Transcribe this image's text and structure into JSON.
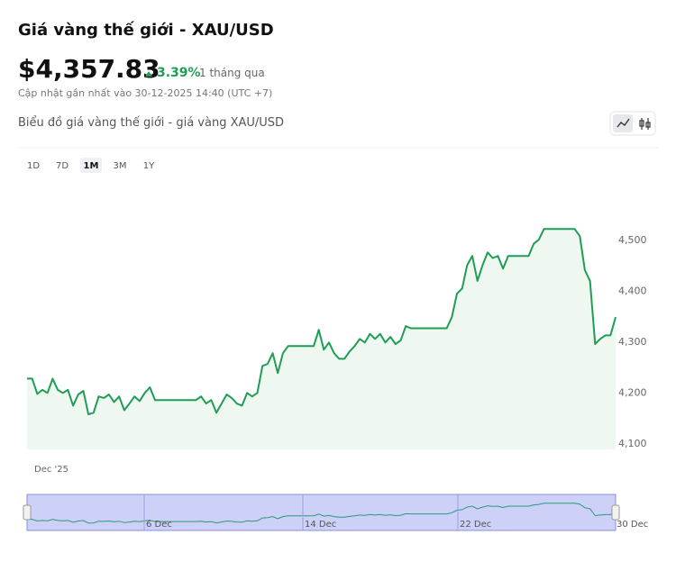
{
  "header": {
    "title": "Giá vàng thế giới - XAU/USD",
    "price": "$4,357.83",
    "change": "3.39%",
    "period": "1 tháng qua",
    "updated": "Cập nhật gần nhất vào 30-12-2025 14:40 (UTC +7)"
  },
  "chart_title": "Biểu đồ giá vàng thế giới - giá vàng XAU/USD",
  "range_buttons": [
    "1D",
    "7D",
    "1M",
    "3M",
    "1Y"
  ],
  "active_range": 2,
  "navigator": {
    "labels": [
      "6 Dec",
      "14 Dec",
      "22 Dec",
      "30 Dec"
    ]
  },
  "chart_data": {
    "type": "area",
    "x_label": "Dec '25",
    "color": "#1f9d55",
    "fill": "#eef8f1",
    "values": [
      4227,
      4227,
      4197,
      4205,
      4199,
      4227,
      4205,
      4199,
      4205,
      4174,
      4196,
      4203,
      4157,
      4160,
      4192,
      4189,
      4196,
      4181,
      4192,
      4165,
      4178,
      4192,
      4183,
      4199,
      4210,
      4185,
      4185,
      4185,
      4185,
      4185,
      4185,
      4185,
      4185,
      4185,
      4192,
      4178,
      4185,
      4160,
      4178,
      4196,
      4189,
      4178,
      4174,
      4199,
      4192,
      4199,
      4252,
      4256,
      4277,
      4238,
      4277,
      4291,
      4291,
      4291,
      4291,
      4291,
      4291,
      4323,
      4284,
      4298,
      4277,
      4266,
      4266,
      4280,
      4291,
      4305,
      4298,
      4315,
      4305,
      4315,
      4298,
      4309,
      4295,
      4302,
      4330,
      4326,
      4326,
      4326,
      4326,
      4326,
      4326,
      4326,
      4326,
      4348,
      4394,
      4404,
      4450,
      4468,
      4419,
      4450,
      4475,
      4464,
      4468,
      4443,
      4468,
      4468,
      4468,
      4468,
      4468,
      4492,
      4500,
      4521,
      4521,
      4521,
      4521,
      4521,
      4521,
      4521,
      4507,
      4440,
      4419,
      4295,
      4305,
      4312,
      4312,
      4348
    ],
    "ylim": [
      4088,
      4617
    ],
    "yticks": [
      {
        "value": 4100,
        "label": "4,100"
      },
      {
        "value": 4200,
        "label": "4,200"
      },
      {
        "value": 4300,
        "label": "4,300"
      },
      {
        "value": 4400,
        "label": "4,400"
      },
      {
        "value": 4500,
        "label": "4,500"
      }
    ],
    "grid": false
  }
}
